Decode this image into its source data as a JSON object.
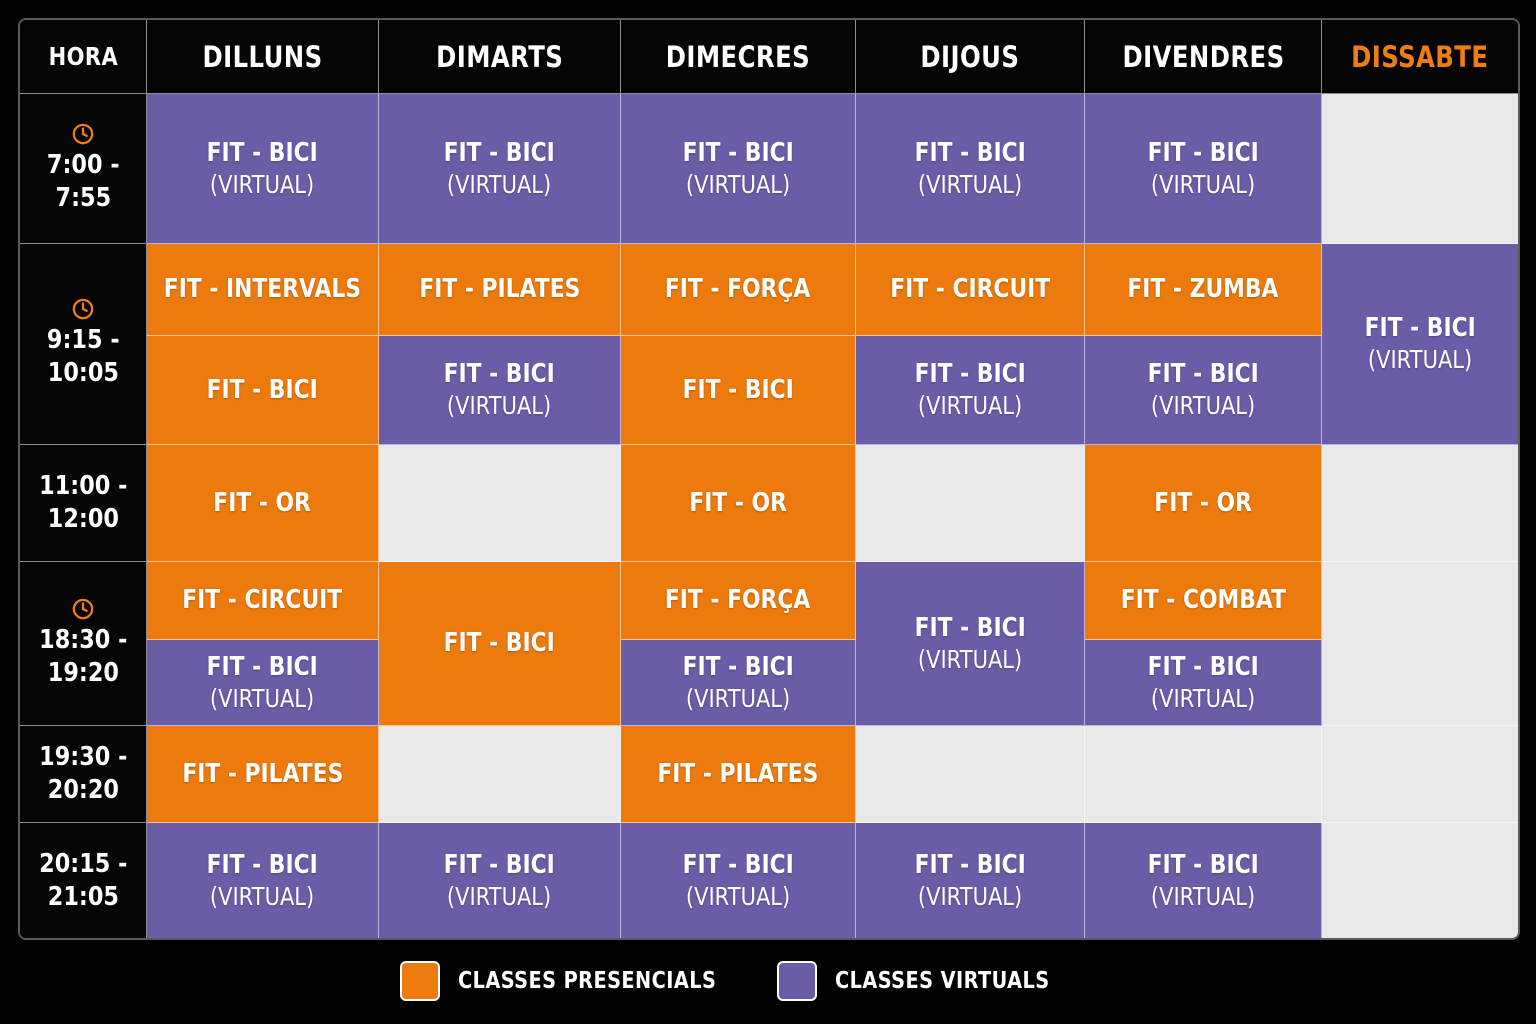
{
  "colors": {
    "presencial": "#ec7a0d",
    "virtual": "#6b5ca8",
    "empty": "#e9e9e9",
    "accent": "#f07d12",
    "background": "#050505"
  },
  "header": {
    "hora": "HORA",
    "days": [
      "DILLUNS",
      "DIMARTS",
      "DIMECRES",
      "DIJOUS",
      "DIVENDRES",
      "DISSABTE"
    ]
  },
  "times": [
    {
      "start": "7:00 -",
      "end": "7:55",
      "icon": "clock-icon"
    },
    {
      "start": "9:15 -",
      "end": "10:05",
      "icon": "clock-icon"
    },
    {
      "start": "11:00 -",
      "end": "12:00",
      "icon": null
    },
    {
      "start": "18:30 -",
      "end": "19:20",
      "icon": "clock-icon"
    },
    {
      "start": "19:30 -",
      "end": "20:20",
      "icon": null
    },
    {
      "start": "20:15 -",
      "end": "21:05",
      "icon": null
    }
  ],
  "classes": {
    "bici": "FIT - BICI",
    "virtual": "(VIRTUAL)",
    "intervals": "FIT - INTERVALS",
    "pilates": "FIT - PILATES",
    "forca": "FIT - FORÇA",
    "circuit": "FIT - CIRCUIT",
    "zumba": "FIT - ZUMBA",
    "or": "FIT - OR",
    "combat": "FIT - COMBAT"
  },
  "legend": {
    "presencial_label": "CLASSES PRESENCIALS",
    "virtual_label": "CLASSES VIRTUALS"
  }
}
